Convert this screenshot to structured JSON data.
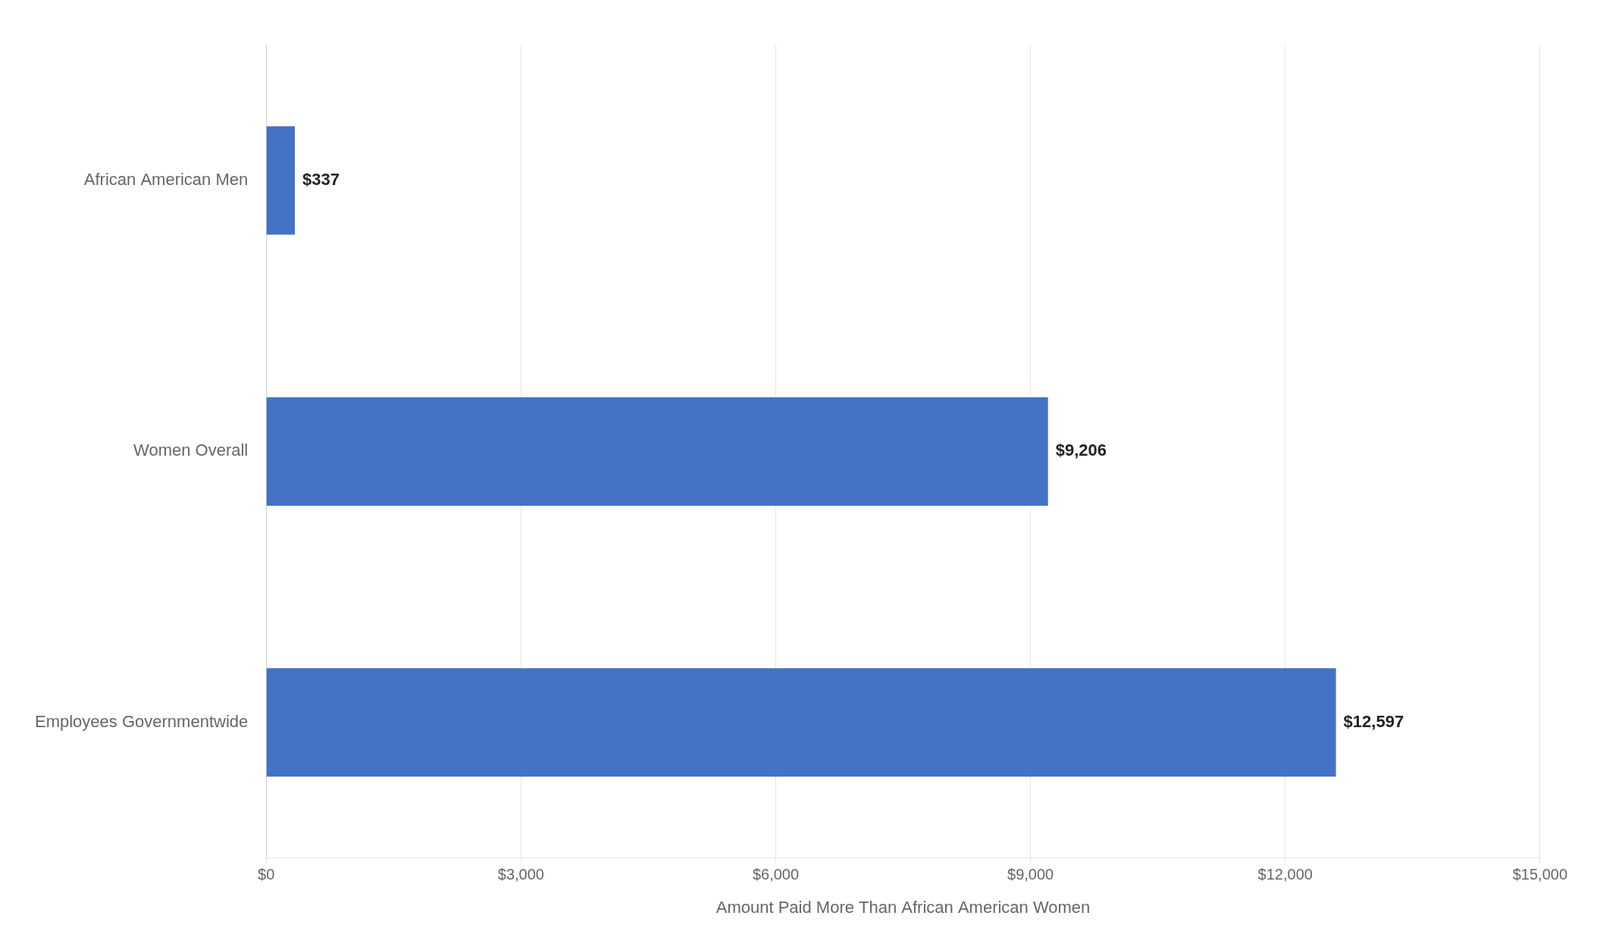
{
  "chart_data": {
    "type": "bar",
    "orientation": "horizontal",
    "categories": [
      "African American Men",
      "Women Overall",
      "Employees Governmentwide"
    ],
    "values": [
      337,
      9206,
      12597
    ],
    "value_labels": [
      "$337",
      "$9,206",
      "$12,597"
    ],
    "data_labels": true,
    "color": "#4472C4",
    "xlabel": "Amount Paid More Than African American Women",
    "xlim": [
      0,
      15000
    ],
    "xticks": [
      {
        "value": 0,
        "label": "$0"
      },
      {
        "value": 3000,
        "label": "$3,000"
      },
      {
        "value": 6000,
        "label": "$6,000"
      },
      {
        "value": 9000,
        "label": "$9,000"
      },
      {
        "value": 12000,
        "label": "$12,000"
      },
      {
        "value": 15000,
        "label": "$15,000"
      }
    ],
    "grid": true
  }
}
